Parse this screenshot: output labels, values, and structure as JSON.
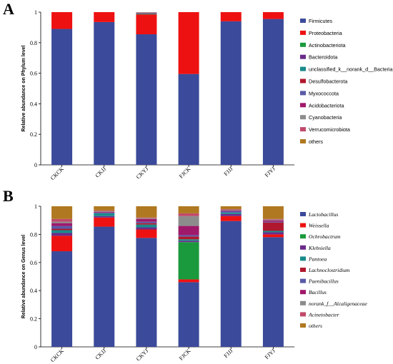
{
  "figure": {
    "panels": [
      {
        "letter": "A"
      },
      {
        "letter": "B"
      }
    ]
  },
  "chart_data": [
    {
      "type": "bar",
      "stacked": true,
      "ylabel": "Relative abundance on Phylum level",
      "ylim": [
        0,
        1
      ],
      "yticks": [
        "0",
        "0.2",
        "0.4",
        "0.6",
        "0.8",
        "1"
      ],
      "categories": [
        "CKCK",
        "CKJJ",
        "CKYJ",
        "FJCK",
        "FJJJ",
        "FJYJ"
      ],
      "legend_position": "right",
      "legend_italic": false,
      "series": [
        {
          "name": "Firmicutes",
          "color": "#3b4a9a",
          "values": [
            0.89,
            0.935,
            0.855,
            0.595,
            0.94,
            0.955
          ]
        },
        {
          "name": "Proteobacteria",
          "color": "#ee1111",
          "values": [
            0.11,
            0.065,
            0.13,
            0.405,
            0.06,
            0.045
          ]
        },
        {
          "name": "Actinobacteriota",
          "color": "#1a9a3c",
          "values": [
            0,
            0,
            0.003,
            0,
            0,
            0
          ]
        },
        {
          "name": "Bacteroidota",
          "color": "#6a2a8a",
          "values": [
            0,
            0,
            0.004,
            0,
            0,
            0
          ]
        },
        {
          "name": "unclassified_k__norank_d__Bacteria",
          "color": "#1a8a8a",
          "values": [
            0,
            0,
            0.002,
            0,
            0,
            0
          ]
        },
        {
          "name": "Desulfobacterota",
          "color": "#b0182e",
          "values": [
            0,
            0,
            0.002,
            0,
            0,
            0
          ]
        },
        {
          "name": "Myxococcota",
          "color": "#5a5aa8",
          "values": [
            0,
            0,
            0.001,
            0,
            0,
            0
          ]
        },
        {
          "name": "Acidobacteriota",
          "color": "#a0186a",
          "values": [
            0,
            0,
            0.001,
            0,
            0,
            0
          ]
        },
        {
          "name": "Cyanobacteria",
          "color": "#8c8c8c",
          "values": [
            0,
            0,
            0.001,
            0,
            0,
            0
          ]
        },
        {
          "name": "Verrucomicrobiota",
          "color": "#c04a6a",
          "values": [
            0,
            0,
            0.0005,
            0,
            0,
            0
          ]
        },
        {
          "name": "others",
          "color": "#b07820",
          "values": [
            0,
            0,
            0.0005,
            0,
            0,
            0
          ]
        }
      ]
    },
    {
      "type": "bar",
      "stacked": true,
      "ylabel": "Relative abundance on Genus level",
      "ylim": [
        0,
        1
      ],
      "yticks": [
        "0",
        "0.2",
        "0.4",
        "0.6",
        "0.8",
        "1"
      ],
      "categories": [
        "CKCK",
        "CKJJ",
        "CKYJ",
        "FJCK",
        "FJJJ",
        "FJYJ"
      ],
      "legend_position": "right",
      "legend_italic": true,
      "series": [
        {
          "name": "Lactobacillus",
          "color": "#3b4a9a",
          "values": [
            0.68,
            0.855,
            0.775,
            0.46,
            0.895,
            0.78
          ]
        },
        {
          "name": "Weissella",
          "color": "#ee1111",
          "values": [
            0.11,
            0.065,
            0.06,
            0.02,
            0.035,
            0.02
          ]
        },
        {
          "name": "Ochrobactrum",
          "color": "#1a9a3c",
          "values": [
            0,
            0,
            0,
            0.265,
            0,
            0
          ]
        },
        {
          "name": "Klebsiella",
          "color": "#6a2a8a",
          "values": [
            0.02,
            0.01,
            0.015,
            0.01,
            0.015,
            0.015
          ]
        },
        {
          "name": "Pantoea",
          "color": "#1a8a8a",
          "values": [
            0.02,
            0.02,
            0.02,
            0.01,
            0.01,
            0.01
          ]
        },
        {
          "name": "Lachnoclostridium",
          "color": "#b0182e",
          "values": [
            0.01,
            0,
            0.01,
            0.02,
            0,
            0.06
          ]
        },
        {
          "name": "Paenibacillus",
          "color": "#5a5aa8",
          "values": [
            0.02,
            0.005,
            0.01,
            0.01,
            0.01,
            0.005
          ]
        },
        {
          "name": "Bacillus",
          "color": "#a0186a",
          "values": [
            0.02,
            0.005,
            0.02,
            0.065,
            0.005,
            0.01
          ]
        },
        {
          "name": "norank_f__Alcaligenaceae",
          "color": "#8c8c8c",
          "values": [
            0.01,
            0.005,
            0.005,
            0.07,
            0.005,
            0.005
          ]
        },
        {
          "name": "Acinetobacter",
          "color": "#c04a6a",
          "values": [
            0.02,
            0.005,
            0.005,
            0.02,
            0.005,
            0.005
          ]
        },
        {
          "name": "others",
          "color": "#b07820",
          "values": [
            0.09,
            0.03,
            0.08,
            0.05,
            0.02,
            0.09
          ]
        }
      ]
    }
  ]
}
